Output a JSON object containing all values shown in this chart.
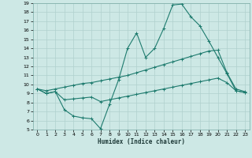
{
  "title": "",
  "xlabel": "Humidex (Indice chaleur)",
  "background_color": "#cde8e5",
  "grid_color": "#b0d0cd",
  "line_color": "#1e7b6e",
  "xlim": [
    -0.5,
    23.5
  ],
  "ylim": [
    5,
    19
  ],
  "xticks": [
    0,
    1,
    2,
    3,
    4,
    5,
    6,
    7,
    8,
    9,
    10,
    11,
    12,
    13,
    14,
    15,
    16,
    17,
    18,
    19,
    20,
    21,
    22,
    23
  ],
  "yticks": [
    5,
    6,
    7,
    8,
    9,
    10,
    11,
    12,
    13,
    14,
    15,
    16,
    17,
    18,
    19
  ],
  "line1_x": [
    0,
    1,
    2,
    3,
    4,
    5,
    6,
    7,
    8,
    9,
    10,
    11,
    12,
    13,
    14,
    15,
    16,
    17,
    18,
    19,
    20,
    21,
    22,
    23
  ],
  "line1_y": [
    9.5,
    9.0,
    9.2,
    7.2,
    6.5,
    6.3,
    6.2,
    5.1,
    7.8,
    10.5,
    14.0,
    15.7,
    13.0,
    14.0,
    16.2,
    18.8,
    18.9,
    17.5,
    16.5,
    14.8,
    13.0,
    11.2,
    9.3,
    9.1
  ],
  "line2_x": [
    0,
    1,
    2,
    3,
    4,
    5,
    6,
    7,
    8,
    9,
    10,
    11,
    12,
    13,
    14,
    15,
    16,
    17,
    18,
    19,
    20,
    21,
    22,
    23
  ],
  "line2_y": [
    9.5,
    9.3,
    9.5,
    9.7,
    9.9,
    10.1,
    10.2,
    10.4,
    10.6,
    10.8,
    11.0,
    11.3,
    11.6,
    11.9,
    12.2,
    12.5,
    12.8,
    13.1,
    13.4,
    13.7,
    13.8,
    11.3,
    9.5,
    9.2
  ],
  "line3_x": [
    0,
    1,
    2,
    3,
    4,
    5,
    6,
    7,
    8,
    9,
    10,
    11,
    12,
    13,
    14,
    15,
    16,
    17,
    18,
    19,
    20,
    21,
    22,
    23
  ],
  "line3_y": [
    9.5,
    9.0,
    9.2,
    8.3,
    8.4,
    8.5,
    8.6,
    8.1,
    8.3,
    8.5,
    8.7,
    8.9,
    9.1,
    9.3,
    9.5,
    9.7,
    9.9,
    10.1,
    10.3,
    10.5,
    10.7,
    10.2,
    9.3,
    9.1
  ]
}
